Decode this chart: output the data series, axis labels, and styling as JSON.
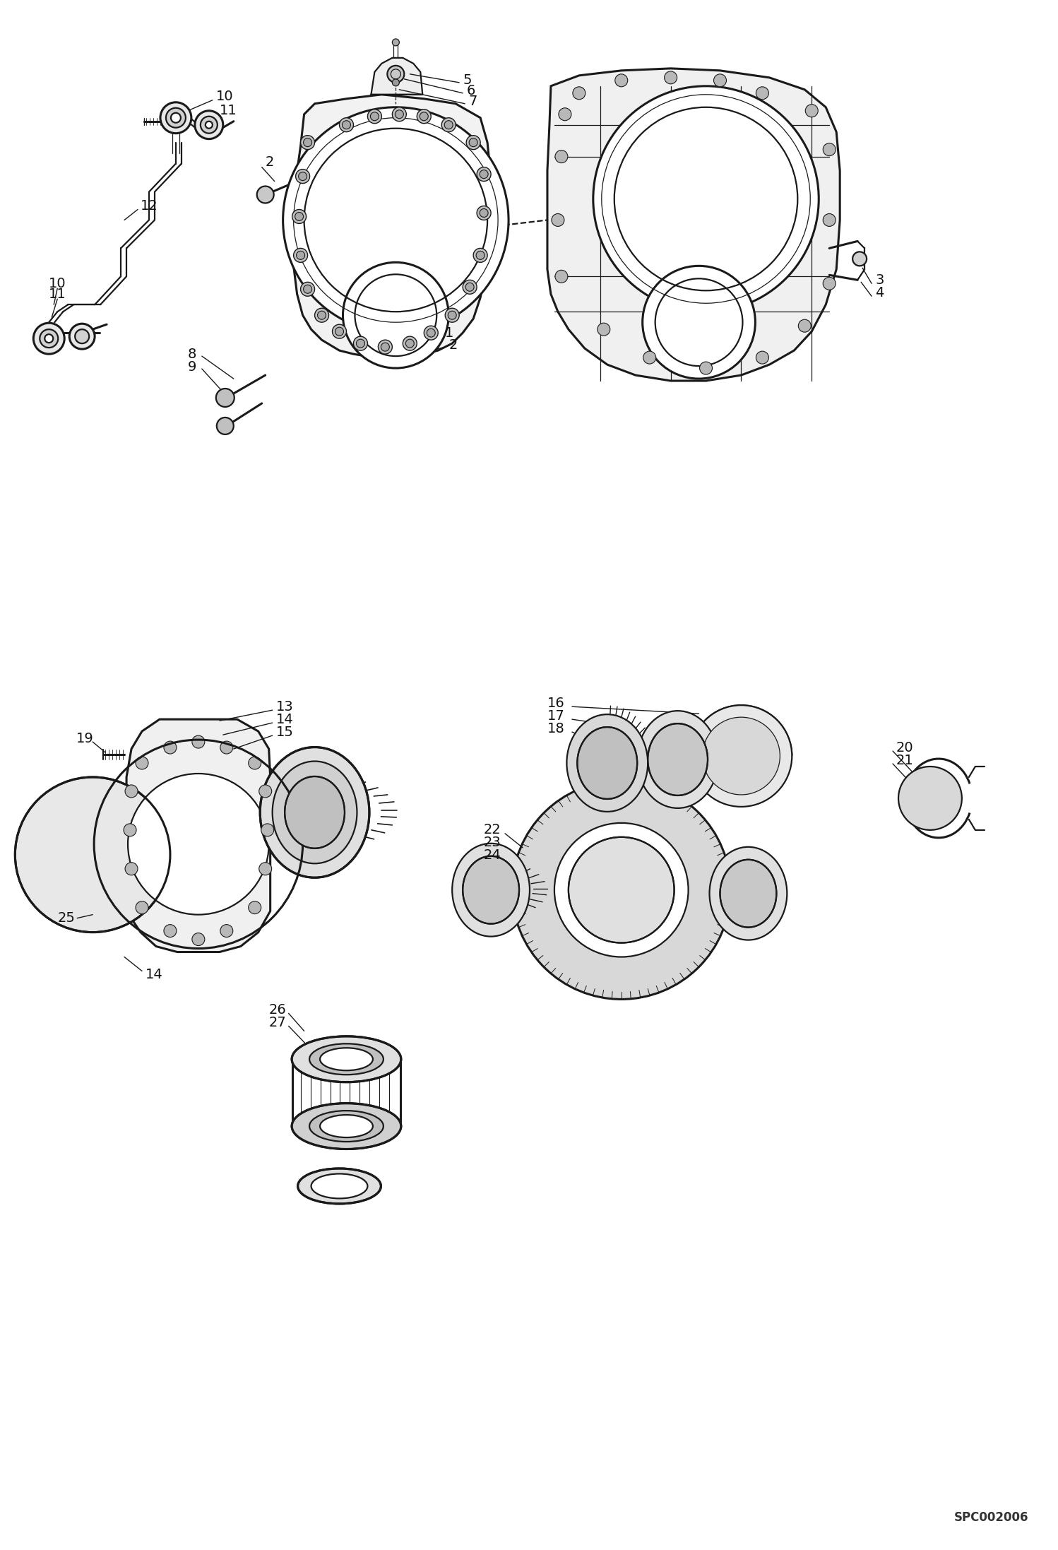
{
  "background_color": "#ffffff",
  "line_color": "#1a1a1a",
  "text_color": "#111111",
  "page_code": "SPC002006",
  "figsize": [
    14.98,
    21.94
  ],
  "dpi": 100,
  "lw_main": 1.6,
  "lw_thick": 2.2,
  "lw_thin": 0.9,
  "fs_label": 14
}
